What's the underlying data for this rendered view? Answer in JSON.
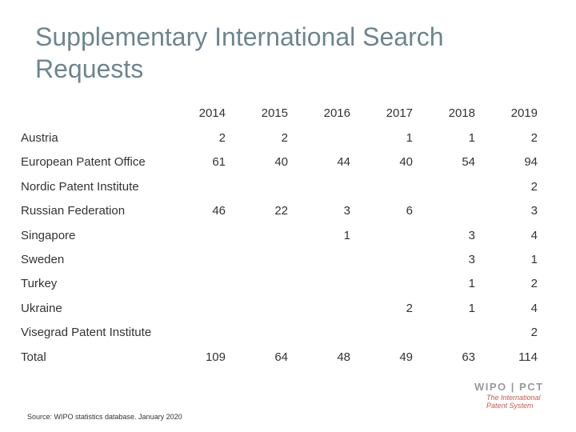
{
  "title": "Supplementary International Search Requests",
  "years": [
    "2014",
    "2015",
    "2016",
    "2017",
    "2018",
    "2019"
  ],
  "rows": [
    {
      "label": "Austria",
      "values": [
        "2",
        "2",
        "",
        "1",
        "1",
        "2"
      ]
    },
    {
      "label": "European Patent Office",
      "values": [
        "61",
        "40",
        "44",
        "40",
        "54",
        "94"
      ]
    },
    {
      "label": "Nordic Patent Institute",
      "values": [
        "",
        "",
        "",
        "",
        "",
        "2"
      ]
    },
    {
      "label": "Russian Federation",
      "values": [
        "46",
        "22",
        "3",
        "6",
        "",
        "3"
      ]
    },
    {
      "label": "Singapore",
      "values": [
        "",
        "",
        "1",
        "",
        "3",
        "4"
      ]
    },
    {
      "label": "Sweden",
      "values": [
        "",
        "",
        "",
        "",
        "3",
        "1"
      ]
    },
    {
      "label": "Turkey",
      "values": [
        "",
        "",
        "",
        "",
        "1",
        "2"
      ]
    },
    {
      "label": "Ukraine",
      "values": [
        "",
        "",
        "",
        "2",
        "1",
        "4"
      ]
    },
    {
      "label": "Visegrad Patent Institute",
      "values": [
        "",
        "",
        "",
        "",
        "",
        "2"
      ]
    }
  ],
  "total": {
    "label": "Total",
    "values": [
      "109",
      "64",
      "48",
      "49",
      "63",
      "114"
    ]
  },
  "source": "Source: WIPO statistics database. January 2020",
  "logo": {
    "name": "WIPO | PCT",
    "subtitle_line1": "The International",
    "subtitle_line2": "Patent System"
  }
}
